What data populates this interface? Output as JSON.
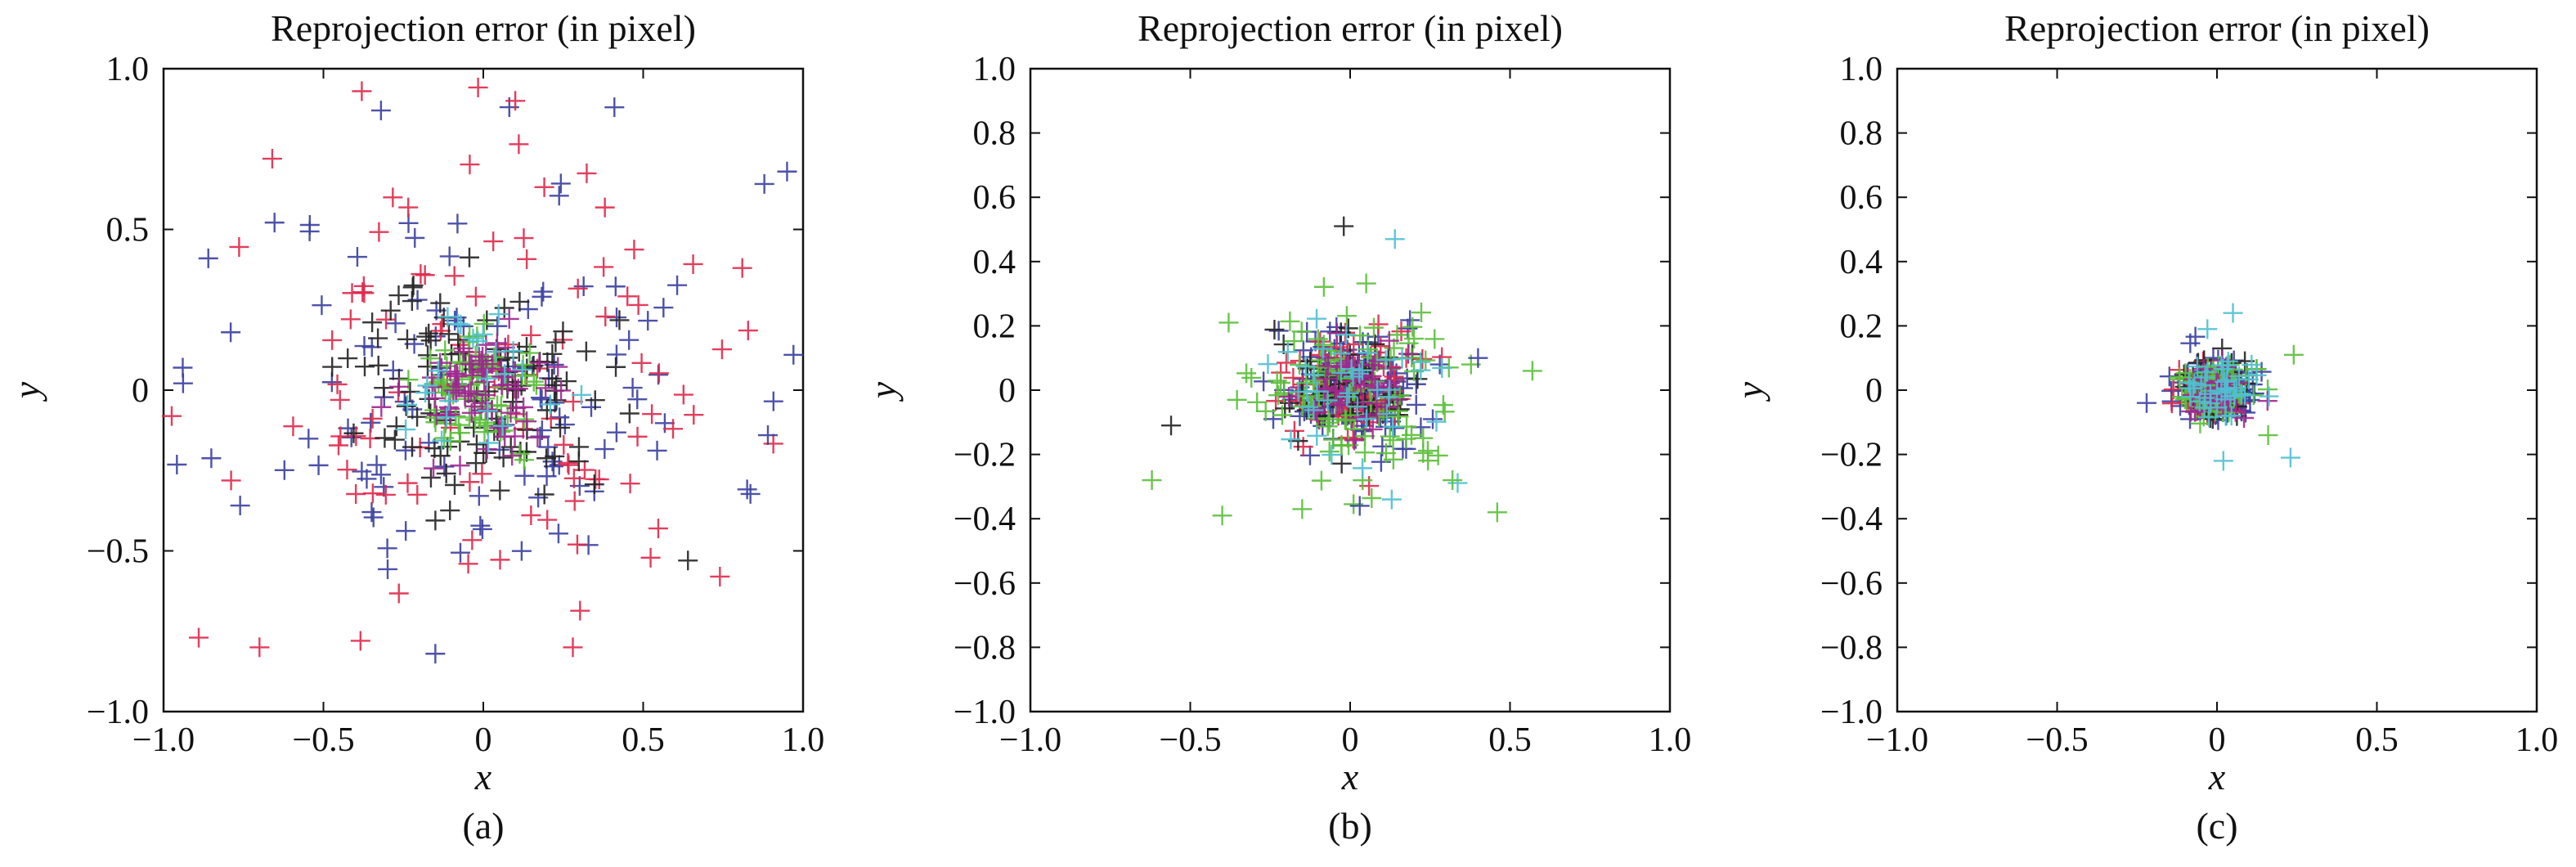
{
  "colors": {
    "blue": "#3a3fa0",
    "red": "#e0284a",
    "black": "#222222",
    "green": "#5bbf3a",
    "magenta": "#a02890",
    "cyan": "#4fc0d0"
  },
  "chart_data": [
    {
      "type": "scatter",
      "title": "Reprojection error (in pixel)",
      "xlabel": "x",
      "ylabel": "y",
      "label": "(a)",
      "xlim": [
        -1.0,
        1.0
      ],
      "ylim": [
        -1.0,
        1.0
      ],
      "xticks": [
        -1.0,
        -0.5,
        0,
        0.5,
        1.0
      ],
      "yticks": [
        -1.0,
        -0.5,
        0,
        0.5,
        1.0
      ],
      "xtick_labels": [
        "−1.0",
        "−0.5",
        "0",
        "0.5",
        "1.0"
      ],
      "ytick_labels": [
        "−1.0",
        "−0.5",
        "0",
        "0.5",
        "1.0"
      ],
      "marker": "plus",
      "grid": false,
      "clusters": [
        {
          "color": "blue",
          "spread": 0.38,
          "count": 110,
          "seed": 11
        },
        {
          "color": "red",
          "spread": 0.36,
          "count": 100,
          "seed": 23
        },
        {
          "color": "black",
          "spread": 0.2,
          "count": 110,
          "seed": 37
        },
        {
          "color": "green",
          "spread": 0.1,
          "count": 70,
          "seed": 41
        },
        {
          "color": "magenta",
          "spread": 0.12,
          "count": 70,
          "seed": 53
        },
        {
          "color": "cyan",
          "spread": 0.14,
          "count": 25,
          "seed": 67
        }
      ],
      "outliers": [
        {
          "x": -0.38,
          "y": 0.93,
          "color": "red"
        },
        {
          "x": -0.32,
          "y": 0.87,
          "color": "blue"
        },
        {
          "x": 0.1,
          "y": 0.9,
          "color": "red"
        },
        {
          "x": 0.41,
          "y": 0.88,
          "color": "blue"
        },
        {
          "x": -0.66,
          "y": 0.72,
          "color": "red"
        },
        {
          "x": 0.95,
          "y": 0.68,
          "color": "blue"
        },
        {
          "x": -0.86,
          "y": 0.41,
          "color": "blue"
        },
        {
          "x": 0.81,
          "y": 0.38,
          "color": "red"
        },
        {
          "x": -0.94,
          "y": 0.07,
          "color": "blue"
        },
        {
          "x": 0.97,
          "y": 0.11,
          "color": "blue"
        },
        {
          "x": -0.89,
          "y": -0.77,
          "color": "red"
        },
        {
          "x": -0.7,
          "y": -0.8,
          "color": "red"
        },
        {
          "x": 0.74,
          "y": -0.58,
          "color": "red"
        },
        {
          "x": 0.28,
          "y": -0.8,
          "color": "red"
        },
        {
          "x": -0.15,
          "y": -0.82,
          "color": "blue"
        },
        {
          "x": 0.64,
          "y": -0.53,
          "color": "black"
        },
        {
          "x": 0.89,
          "y": -0.14,
          "color": "blue"
        },
        {
          "x": -0.79,
          "y": 0.18,
          "color": "blue"
        }
      ]
    },
    {
      "type": "scatter",
      "title": "Reprojection error (in pixel)",
      "xlabel": "x",
      "ylabel": "y",
      "label": "(b)",
      "xlim": [
        -1.0,
        1.0
      ],
      "ylim": [
        -1.0,
        1.0
      ],
      "xticks": [
        -1.0,
        -0.5,
        0,
        0.5,
        1.0
      ],
      "yticks": [
        -1.0,
        -0.8,
        -0.6,
        -0.4,
        -0.2,
        0,
        0.2,
        0.4,
        0.6,
        0.8,
        1.0
      ],
      "xtick_labels": [
        "−1.0",
        "−0.5",
        "0",
        "0.5",
        "1.0"
      ],
      "ytick_labels": [
        "−1.0",
        "−0.8",
        "−0.6",
        "−0.4",
        "−0.2",
        "0",
        "0.2",
        "0.4",
        "0.6",
        "0.8",
        "1.0"
      ],
      "marker": "plus",
      "grid": false,
      "clusters": [
        {
          "color": "blue",
          "spread": 0.11,
          "count": 120,
          "seed": 101
        },
        {
          "color": "red",
          "spread": 0.1,
          "count": 80,
          "seed": 113
        },
        {
          "color": "black",
          "spread": 0.1,
          "count": 60,
          "seed": 127
        },
        {
          "color": "green",
          "spread": 0.16,
          "count": 110,
          "seed": 131
        },
        {
          "color": "magenta",
          "spread": 0.08,
          "count": 50,
          "seed": 149
        },
        {
          "color": "cyan",
          "spread": 0.12,
          "count": 40,
          "seed": 157
        }
      ],
      "outliers": [
        {
          "x": -0.02,
          "y": 0.51,
          "color": "black"
        },
        {
          "x": 0.14,
          "y": 0.47,
          "color": "cyan"
        },
        {
          "x": -0.62,
          "y": -0.28,
          "color": "green"
        },
        {
          "x": -0.4,
          "y": -0.39,
          "color": "green"
        },
        {
          "x": 0.57,
          "y": 0.06,
          "color": "green"
        },
        {
          "x": 0.46,
          "y": -0.38,
          "color": "green"
        },
        {
          "x": -0.56,
          "y": -0.11,
          "color": "black"
        },
        {
          "x": -0.38,
          "y": 0.21,
          "color": "green"
        },
        {
          "x": -0.15,
          "y": -0.37,
          "color": "green"
        },
        {
          "x": 0.03,
          "y": -0.36,
          "color": "blue"
        },
        {
          "x": 0.13,
          "y": -0.34,
          "color": "cyan"
        },
        {
          "x": 0.4,
          "y": 0.1,
          "color": "blue"
        },
        {
          "x": 0.32,
          "y": -0.28,
          "color": "green"
        }
      ]
    },
    {
      "type": "scatter",
      "title": "Reprojection error (in pixel)",
      "xlabel": "x",
      "ylabel": "y",
      "label": "(c)",
      "xlim": [
        -1.0,
        1.0
      ],
      "ylim": [
        -1.0,
        1.0
      ],
      "xticks": [
        -1.0,
        -0.5,
        0,
        0.5,
        1.0
      ],
      "yticks": [
        -1.0,
        -0.8,
        -0.6,
        -0.4,
        -0.2,
        0,
        0.2,
        0.4,
        0.6,
        0.8,
        1.0
      ],
      "xtick_labels": [
        "−1.0",
        "−0.5",
        "0",
        "0.5",
        "1.0"
      ],
      "ytick_labels": [
        "−1.0",
        "−0.8",
        "−0.6",
        "−0.4",
        "−0.2",
        "0",
        "0.2",
        "0.4",
        "0.6",
        "0.8",
        "1.0"
      ],
      "marker": "plus",
      "grid": false,
      "clusters": [
        {
          "color": "blue",
          "spread": 0.06,
          "count": 120,
          "seed": 201
        },
        {
          "color": "red",
          "spread": 0.05,
          "count": 70,
          "seed": 211
        },
        {
          "color": "black",
          "spread": 0.05,
          "count": 50,
          "seed": 223
        },
        {
          "color": "green",
          "spread": 0.05,
          "count": 90,
          "seed": 227
        },
        {
          "color": "magenta",
          "spread": 0.045,
          "count": 40,
          "seed": 229
        },
        {
          "color": "cyan",
          "spread": 0.065,
          "count": 40,
          "seed": 233
        }
      ],
      "outliers": [
        {
          "x": 0.05,
          "y": 0.24,
          "color": "cyan"
        },
        {
          "x": -0.03,
          "y": 0.19,
          "color": "cyan"
        },
        {
          "x": 0.23,
          "y": -0.21,
          "color": "cyan"
        },
        {
          "x": 0.24,
          "y": 0.11,
          "color": "green"
        },
        {
          "x": -0.22,
          "y": -0.04,
          "color": "blue"
        },
        {
          "x": 0.02,
          "y": -0.22,
          "color": "cyan"
        },
        {
          "x": 0.16,
          "y": -0.14,
          "color": "green"
        }
      ]
    }
  ]
}
